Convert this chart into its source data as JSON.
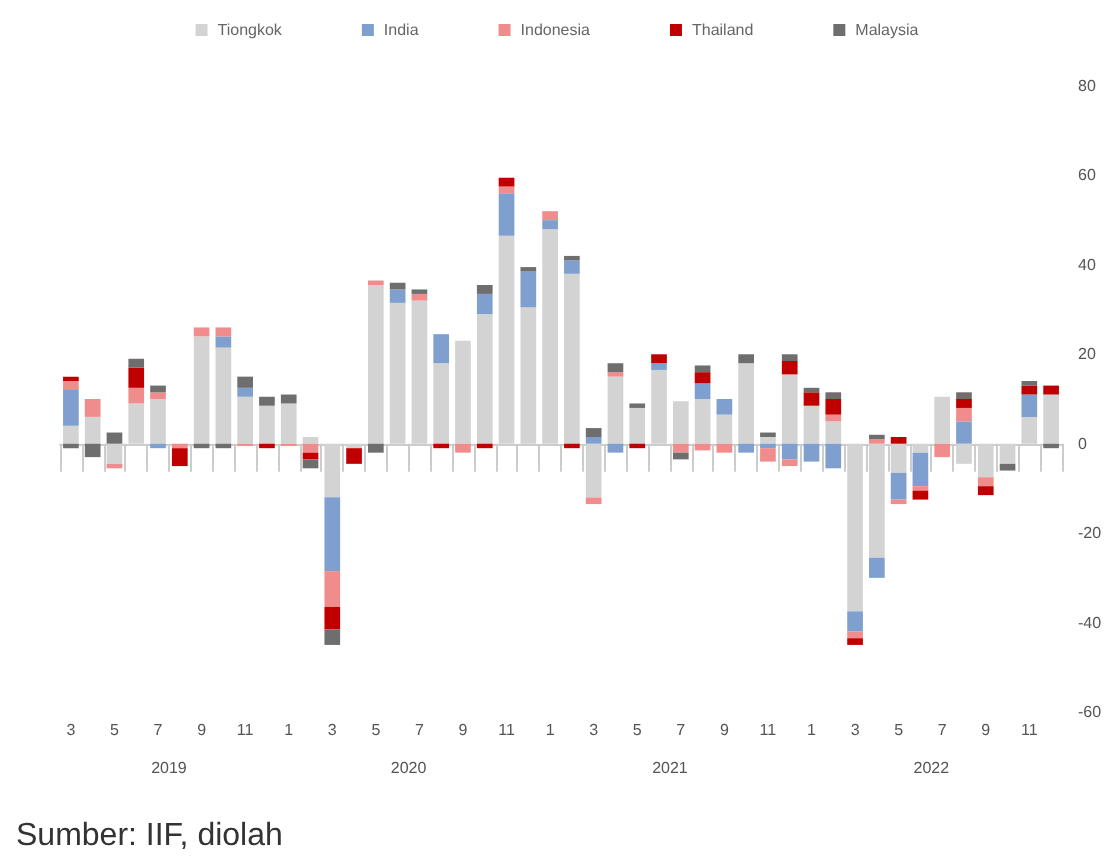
{
  "chart_data": {
    "type": "bar",
    "stacked": true,
    "legend": "top",
    "categories": [
      "3",
      null,
      "5",
      null,
      "7",
      null,
      "9",
      null,
      "11",
      null,
      "1",
      null,
      "3",
      null,
      "5",
      null,
      "7",
      null,
      "9",
      null,
      "11",
      null,
      "1",
      null,
      "3",
      null,
      "5",
      null,
      "7",
      null,
      "9",
      null,
      "11",
      null,
      "1",
      null,
      "3",
      null,
      "5",
      null,
      "7",
      null,
      "9",
      null,
      "11",
      null
    ],
    "ylim": [
      -60,
      80
    ],
    "yticks": [
      -60,
      -40,
      -20,
      0,
      20,
      40,
      60,
      80
    ],
    "series": [
      {
        "name": "Tiongkok",
        "color": "#d3d3d3",
        "values": [
          4,
          6,
          -4.5,
          9,
          10,
          null,
          24,
          21.5,
          10.5,
          8.5,
          9,
          1.5,
          -12,
          -1,
          35.5,
          31.5,
          32,
          18,
          23,
          29,
          46.5,
          30.5,
          48,
          38,
          -12,
          15,
          8,
          16.5,
          9.5,
          10,
          6.5,
          18,
          1.5,
          15.5,
          8.5,
          5,
          -37.5,
          -25.5,
          -6.5,
          -2,
          10.5,
          -4.5,
          -7.5,
          -4.5,
          6,
          11
        ]
      },
      {
        "name": "India",
        "color": "#7f9fcf",
        "values": [
          8,
          null,
          null,
          null,
          -1,
          null,
          null,
          2.5,
          2,
          null,
          null,
          null,
          -16.5,
          null,
          null,
          3,
          null,
          6.5,
          null,
          4.5,
          9.5,
          8,
          2,
          3,
          1.5,
          -2,
          null,
          1.5,
          null,
          3.5,
          3.5,
          -2,
          -1,
          -3.5,
          -4,
          -5.5,
          -4.5,
          -4.5,
          -6,
          -7.5,
          null,
          5,
          null,
          null,
          5,
          null
        ]
      },
      {
        "name": "Indonesia",
        "color": "#f08c8c",
        "values": [
          2,
          4,
          -1,
          3.5,
          1.5,
          -1,
          2,
          2,
          -0.5,
          null,
          -0.5,
          -2,
          -8,
          null,
          1,
          null,
          1.5,
          null,
          -2,
          null,
          1.5,
          null,
          2,
          null,
          -1.5,
          1,
          null,
          null,
          -2,
          -1.5,
          -2,
          null,
          -3,
          -1.5,
          null,
          1.5,
          -1.5,
          1,
          -1,
          -1,
          -3,
          3,
          -2,
          null,
          null,
          null
        ]
      },
      {
        "name": "Thailand",
        "color": "#c00000",
        "values": [
          1,
          null,
          null,
          4.5,
          null,
          -4,
          null,
          null,
          null,
          -1,
          null,
          -1.5,
          -5,
          -3.5,
          null,
          null,
          null,
          -1,
          null,
          -1,
          2,
          null,
          null,
          -1,
          null,
          null,
          -1,
          2,
          null,
          2.5,
          null,
          null,
          null,
          3,
          3,
          3.5,
          -1.5,
          null,
          1.5,
          -2,
          null,
          2,
          -2,
          null,
          2,
          2
        ]
      },
      {
        "name": "Malaysia",
        "color": "#6e6e6e",
        "values": [
          -1,
          -3,
          2.5,
          2,
          1.5,
          null,
          -1,
          -1,
          2.5,
          2,
          2,
          -2,
          -3.5,
          null,
          -2,
          1.5,
          1,
          null,
          null,
          2,
          null,
          1,
          null,
          1,
          2,
          2,
          1,
          null,
          -1.5,
          1.5,
          null,
          2,
          1,
          1.5,
          1,
          1.5,
          null,
          1,
          null,
          null,
          null,
          1.5,
          null,
          -1.5,
          1,
          -1
        ]
      }
    ],
    "annotations": [
      "2019",
      "2020",
      "2021",
      "2022",
      "Sumber: IIF, diolah"
    ]
  }
}
